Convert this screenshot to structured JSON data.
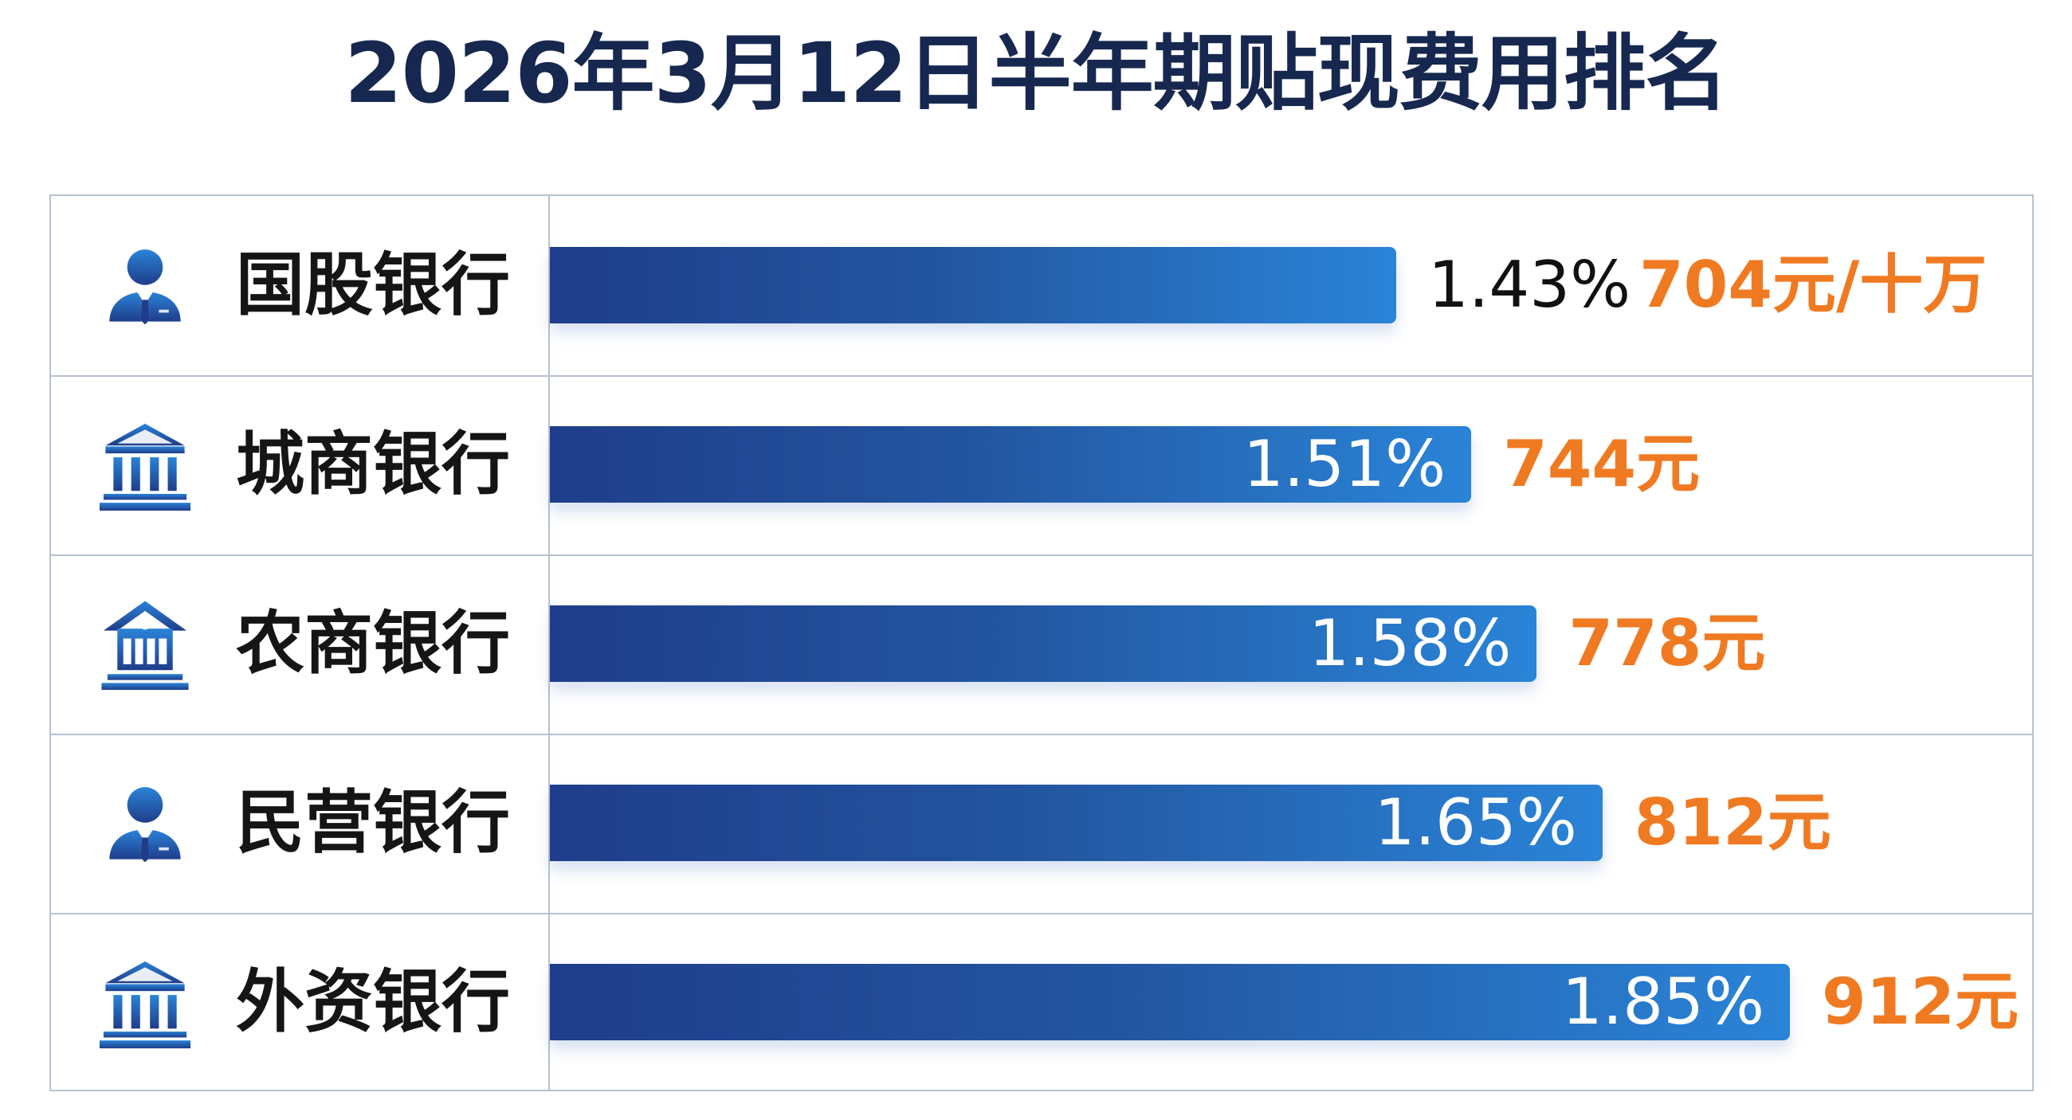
{
  "title": "2026年3月12日半年期贴现费用排名",
  "colors": {
    "bar_start": "#1f3d8b",
    "bar_end": "#2a84d8",
    "amount": "#f07a22",
    "title": "#16284f",
    "grid": "#b6c2d3"
  },
  "rows": [
    {
      "bank": "国股银行",
      "icon": "person-icon",
      "rate": "1.43%",
      "amount": "704元/十万"
    },
    {
      "bank": "城商银行",
      "icon": "bank-building-icon",
      "rate": "1.51%",
      "amount": "744元"
    },
    {
      "bank": "农商银行",
      "icon": "house-bank-icon",
      "rate": "1.58%",
      "amount": "778元"
    },
    {
      "bank": "民营银行",
      "icon": "person-icon",
      "rate": "1.65%",
      "amount": "812元"
    },
    {
      "bank": "外资银行",
      "icon": "bank-building-icon",
      "rate": "1.85%",
      "amount": "912元"
    }
  ],
  "chart_data": {
    "type": "bar",
    "orientation": "horizontal",
    "title": "2026年3月12日半年期贴现费用排名",
    "categories": [
      "国股银行",
      "城商银行",
      "农商银行",
      "民营银行",
      "外资银行"
    ],
    "series": [
      {
        "values": [
          1.43,
          1.51,
          1.58,
          1.65,
          1.85
        ]
      }
    ],
    "value_labels": [
      "1.43%",
      "1.51%",
      "1.58%",
      "1.65%",
      "1.85%"
    ],
    "secondary_labels": [
      "704元/十万",
      "744元",
      "778元",
      "812元",
      "912元"
    ],
    "unit": "%",
    "grid": true
  }
}
